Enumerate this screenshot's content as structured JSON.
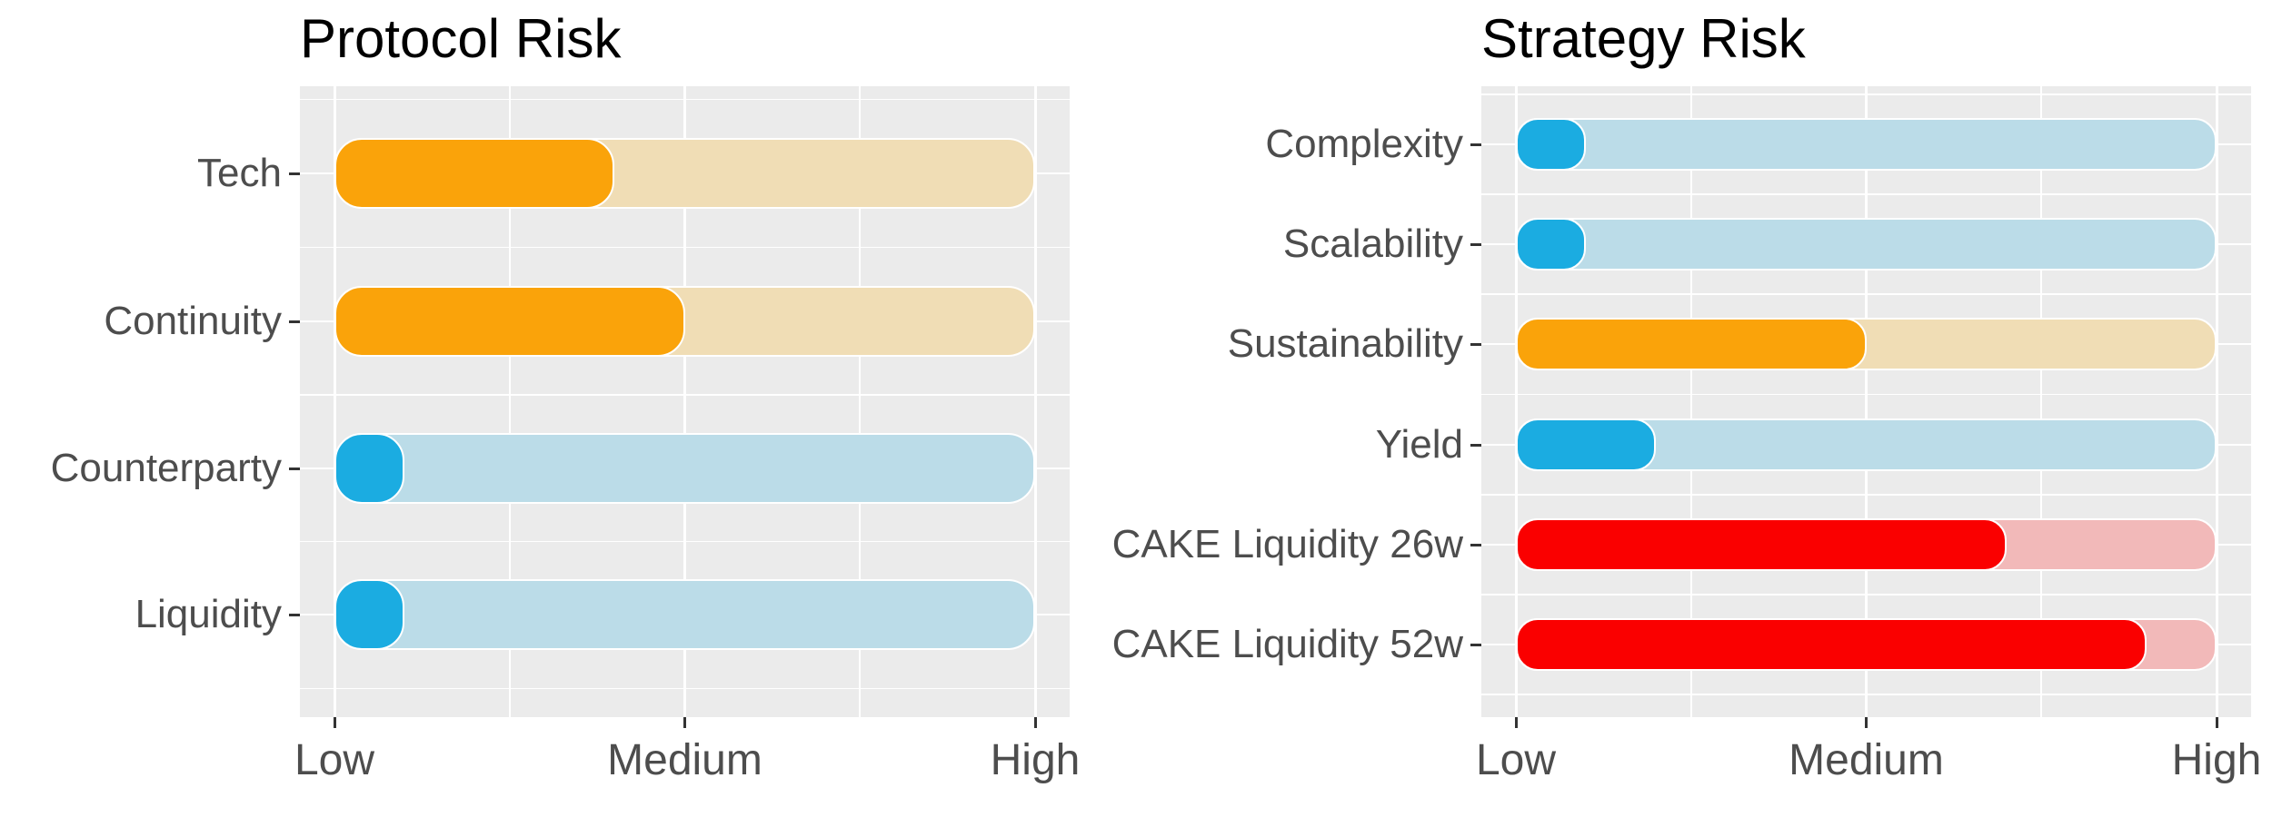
{
  "palette": {
    "orange": "#FAA30A",
    "orange_track": "#F0DDB5",
    "blue": "#1BACE1",
    "blue_track": "#BBDCE8",
    "red": "#FA0000",
    "red_track": "#F2B9B9",
    "panel_bg": "#EBEBEB",
    "gridline": "#FFFFFF",
    "axis_text": "#4D4D4D",
    "tick_mark": "#333333",
    "title_text": "#000000"
  },
  "chart_data": [
    {
      "type": "bar",
      "orientation": "horizontal",
      "title": "Protocol Risk",
      "categories": [
        "Tech",
        "Continuity",
        "Counterparty",
        "Liquidity"
      ],
      "values": [
        0.4,
        0.5,
        0.1,
        0.1
      ],
      "bar_colors": [
        "orange",
        "orange",
        "blue",
        "blue"
      ],
      "track_full_length": true,
      "xlim": [
        0,
        1
      ],
      "x_ticks": [
        {
          "pos": 0,
          "label": "Low"
        },
        {
          "pos": 0.5,
          "label": "Medium"
        },
        {
          "pos": 1,
          "label": "High"
        }
      ],
      "xlabel": "",
      "ylabel": "",
      "grid": "white major and minor on grey panel",
      "legend": "none"
    },
    {
      "type": "bar",
      "orientation": "horizontal",
      "title": "Strategy Risk",
      "categories": [
        "Complexity",
        "Scalability",
        "Sustainability",
        "Yield",
        "CAKE Liquidity 26w",
        "CAKE Liquidity 52w"
      ],
      "values": [
        0.1,
        0.1,
        0.5,
        0.2,
        0.7,
        0.9
      ],
      "bar_colors": [
        "blue",
        "blue",
        "orange",
        "blue",
        "red",
        "red"
      ],
      "track_full_length": true,
      "xlim": [
        0,
        1
      ],
      "x_ticks": [
        {
          "pos": 0,
          "label": "Low"
        },
        {
          "pos": 0.5,
          "label": "Medium"
        },
        {
          "pos": 1,
          "label": "High"
        }
      ],
      "xlabel": "",
      "ylabel": "",
      "grid": "white major and minor on grey panel",
      "legend": "none"
    }
  ]
}
